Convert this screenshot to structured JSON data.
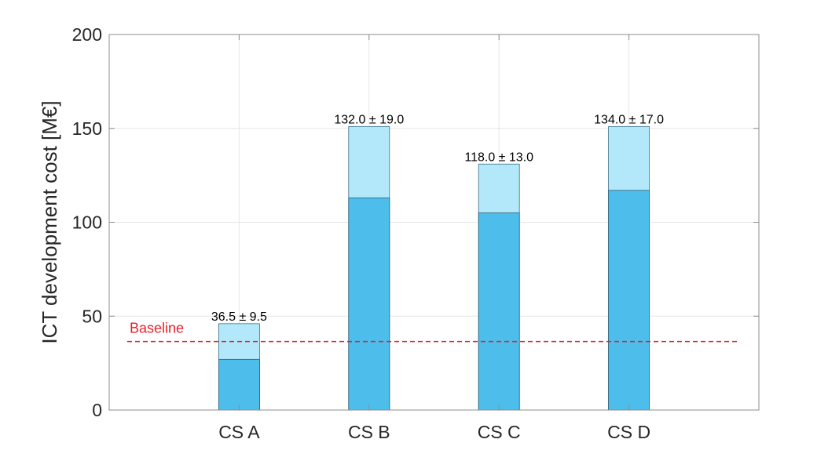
{
  "chart_data": {
    "type": "bar",
    "title": "",
    "xlabel": "",
    "ylabel": "ICT development cost [M€]",
    "ylim": [
      0,
      200
    ],
    "yticks": [
      0,
      50,
      100,
      150,
      200
    ],
    "grid": true,
    "categories": [
      "CS A",
      "CS B",
      "CS C",
      "CS D"
    ],
    "series": [
      {
        "values": [
          27,
          113,
          105,
          117
        ],
        "color": "#4dbeeb"
      },
      {
        "values": [
          46,
          151,
          131,
          151
        ],
        "color": "#b3e8fb"
      }
    ],
    "data_labels": [
      "36.5 ± 9.5",
      "132.0 ± 19.0",
      "118.0 ± 13.0",
      "134.0 ± 17.0"
    ],
    "baseline": {
      "label": "Baseline",
      "value": 36.5,
      "color": "#e8202a"
    }
  }
}
